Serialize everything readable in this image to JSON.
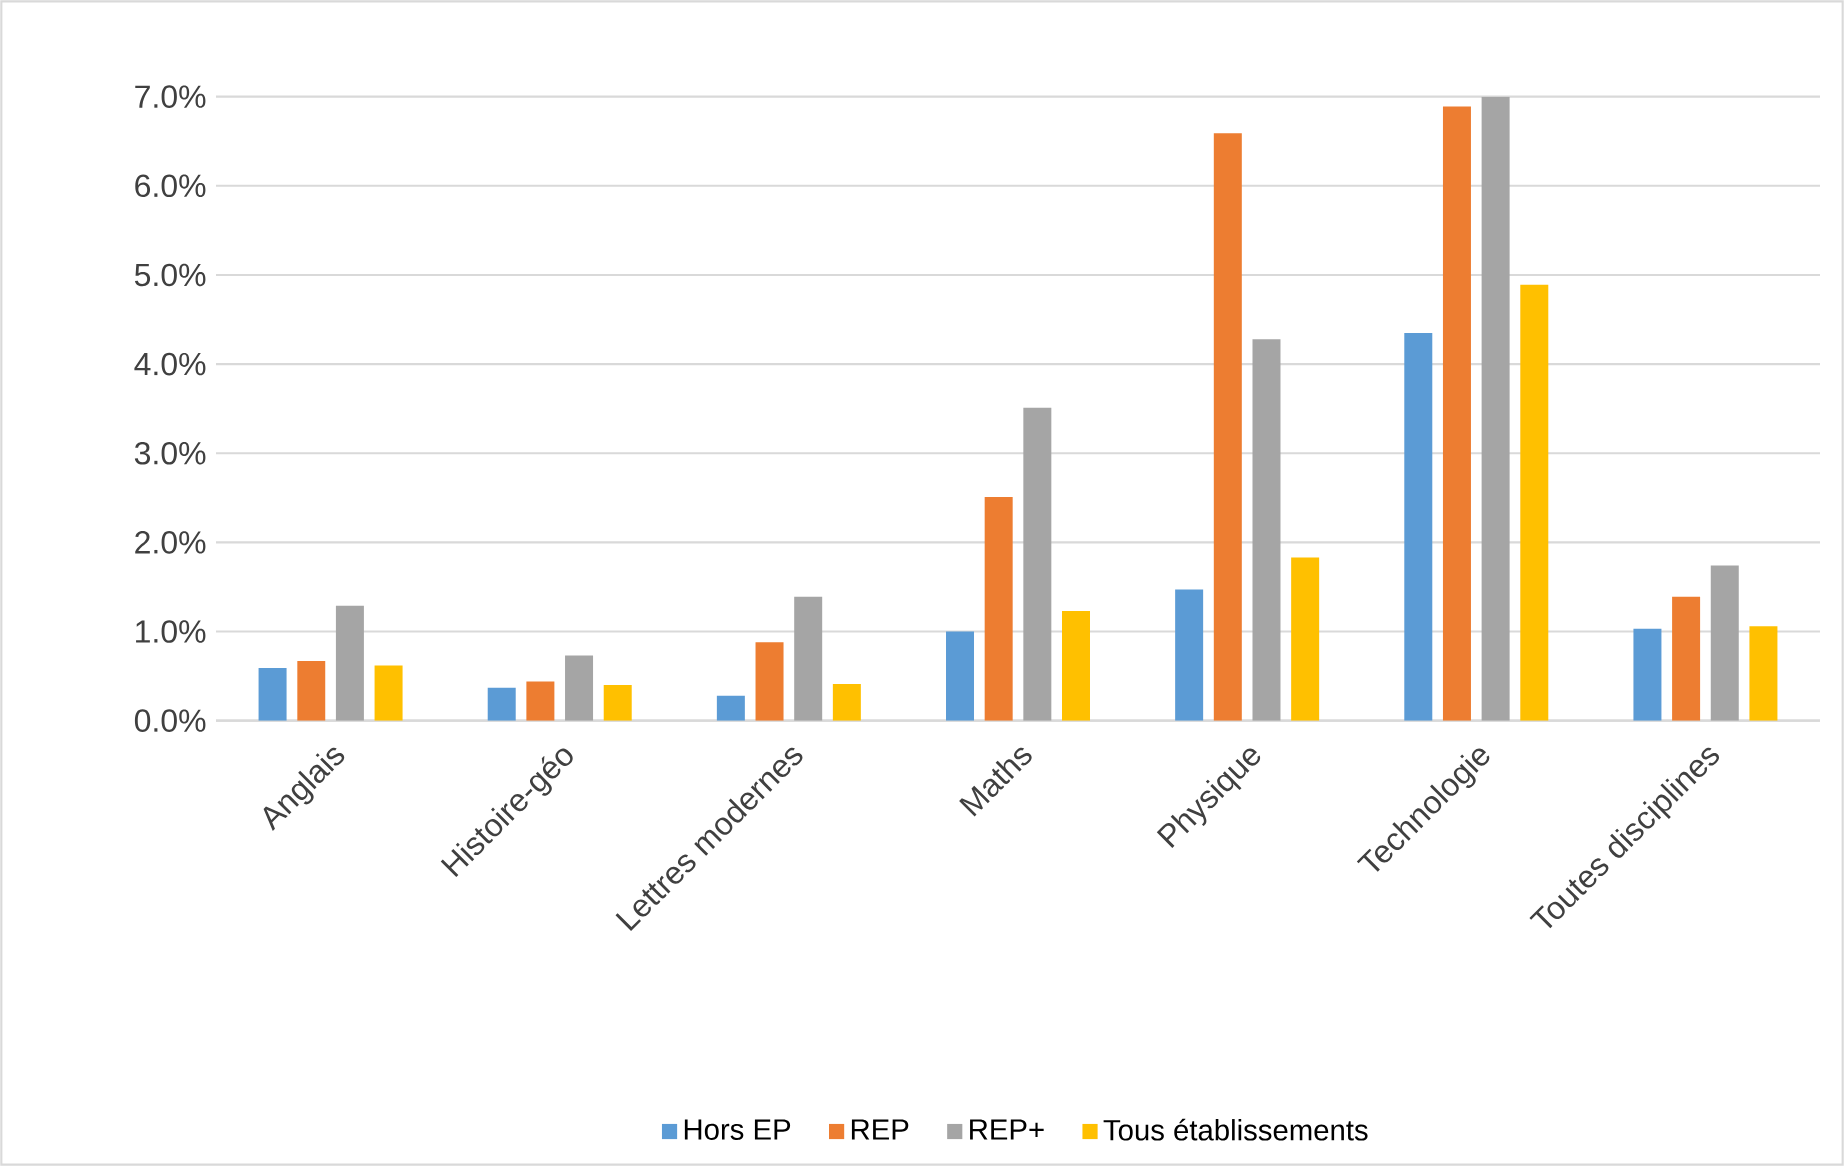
{
  "chart_data": {
    "type": "bar",
    "categories": [
      "Anglais",
      "Histoire-géo",
      "Lettres modernes",
      "Maths",
      "Physique",
      "Technologie",
      "Toutes disciplines"
    ],
    "series": [
      {
        "name": "Hors EP",
        "color": "#5b9bd5",
        "values": [
          0.59,
          0.37,
          0.28,
          1.0,
          1.47,
          4.35,
          1.03
        ]
      },
      {
        "name": "REP",
        "color": "#ed7d31",
        "values": [
          0.67,
          0.44,
          0.88,
          2.51,
          6.59,
          6.89,
          1.39
        ]
      },
      {
        "name": "REP+",
        "color": "#a5a5a5",
        "values": [
          1.29,
          0.73,
          1.39,
          3.51,
          4.28,
          7.0,
          1.74
        ]
      },
      {
        "name": "Tous établissements",
        "color": "#ffc000",
        "values": [
          0.62,
          0.4,
          0.41,
          1.23,
          1.83,
          4.89,
          1.06
        ]
      }
    ],
    "ylim": [
      0,
      7
    ],
    "yticks": [
      {
        "value": 0,
        "label": "0.0%"
      },
      {
        "value": 1,
        "label": "1.0%"
      },
      {
        "value": 2,
        "label": "2.0%"
      },
      {
        "value": 3,
        "label": "3.0%"
      },
      {
        "value": 4,
        "label": "4.0%"
      },
      {
        "value": 5,
        "label": "5.0%"
      },
      {
        "value": 6,
        "label": "6.0%"
      },
      {
        "value": 7,
        "label": "7.0%"
      }
    ],
    "grid": "y",
    "legend": "bottom"
  }
}
